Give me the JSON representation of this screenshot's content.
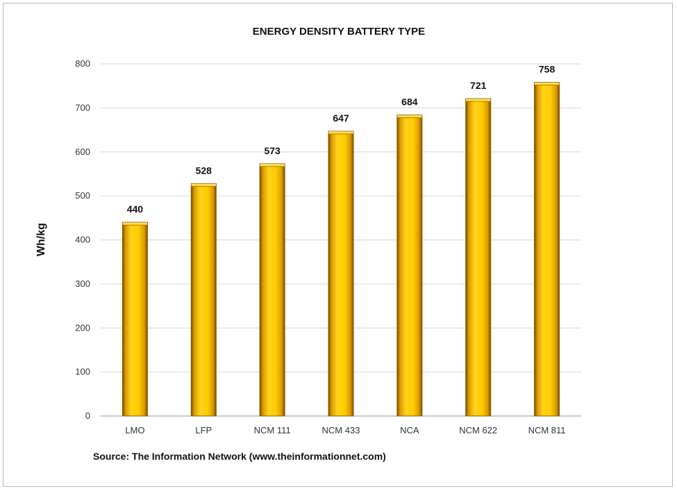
{
  "chart_data": {
    "type": "bar",
    "title": "ENERGY DENSITY BATTERY TYPE",
    "xlabel": "",
    "ylabel": "Wh/kg",
    "categories": [
      "LMO",
      "LFP",
      "NCM 111",
      "NCM 433",
      "NCA",
      "NCM 622",
      "NCM 811"
    ],
    "values": [
      440,
      528,
      573,
      647,
      684,
      721,
      758
    ],
    "ylim": [
      0,
      800
    ],
    "yticks": [
      0,
      100,
      200,
      300,
      400,
      500,
      600,
      700,
      800
    ],
    "grid": true,
    "legend": "none",
    "bar_color": "#FFC800",
    "bar_edge_color": "#8B5A00"
  },
  "source_text": "Source: The Information  Network (www.theinformationnet.com)"
}
